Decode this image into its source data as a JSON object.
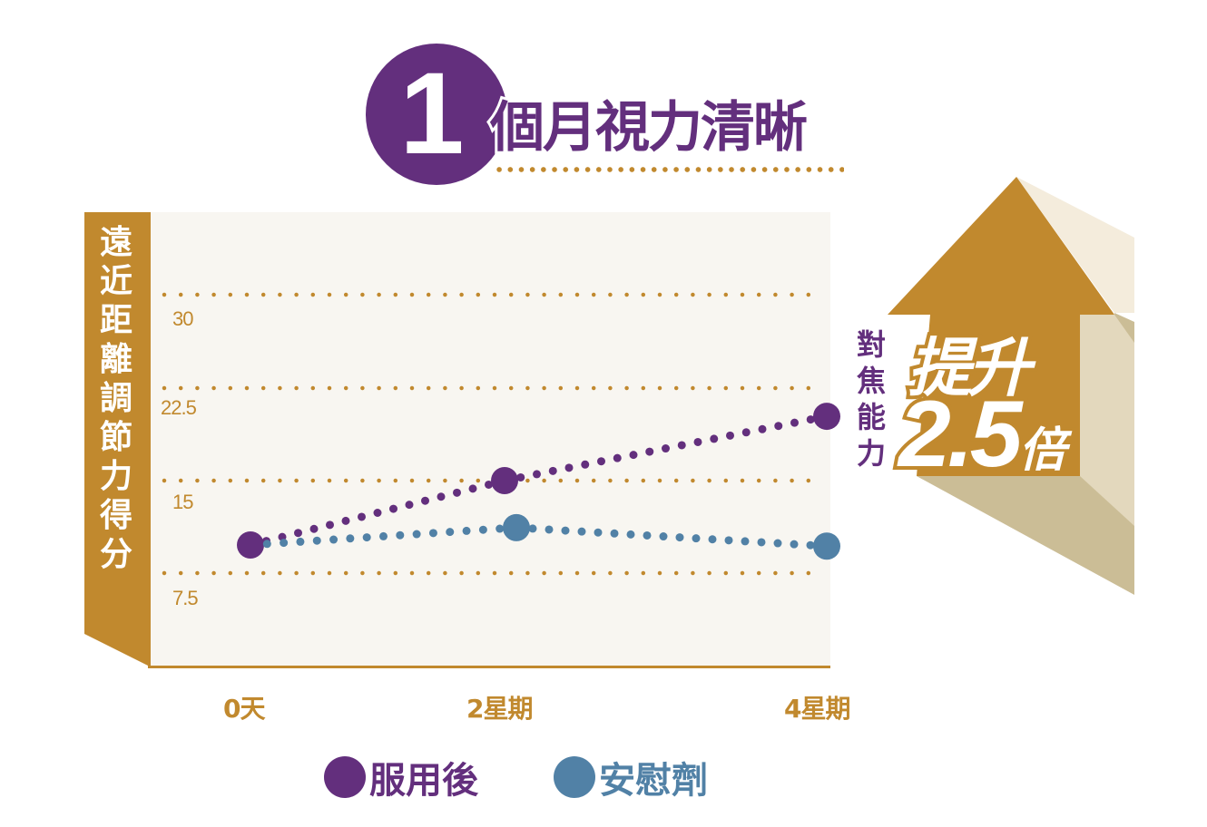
{
  "title": {
    "number": "1",
    "text": "個月視力清晰"
  },
  "colors": {
    "purple": "#632f7d",
    "blue": "#5181a6",
    "gold": "#c1892e",
    "plot_bg": "#f8f6f1",
    "arrow_light": "#f4ecdc",
    "arrow_mid": "#e3d8bd",
    "arrow_dark": "#cbbd96"
  },
  "y_axis": {
    "label": "遠近距離調節力得分",
    "ticks": [
      "30",
      "22.5",
      "15",
      "7.5"
    ]
  },
  "x_axis": {
    "ticks": [
      "0天",
      "2星期",
      "4星期"
    ]
  },
  "callout": {
    "label": "對焦能力",
    "line1": "提升",
    "number": "2.5",
    "unit": "倍"
  },
  "legend": {
    "items": [
      {
        "label": "服用後",
        "color": "#632f7d"
      },
      {
        "label": "安慰劑",
        "color": "#5181a6"
      }
    ]
  },
  "chart_data": {
    "type": "line",
    "title": "1個月視力清晰",
    "xlabel": "",
    "ylabel": "遠近距離調節力得分",
    "categories": [
      "0天",
      "2星期",
      "4星期"
    ],
    "series": [
      {
        "name": "服用後",
        "color": "#632f7d",
        "values": [
          9.8,
          15.0,
          20.2
        ]
      },
      {
        "name": "安慰劑",
        "color": "#5181a6",
        "values": [
          9.8,
          11.2,
          9.7
        ]
      }
    ],
    "y_ticks": [
      7.5,
      15,
      22.5,
      30
    ],
    "ylim": [
      0,
      36
    ],
    "grid": true,
    "grid_style": "dotted horizontal",
    "line_style": "dotted",
    "legend_position": "bottom",
    "annotation": "對焦能力 提升2.5倍"
  }
}
